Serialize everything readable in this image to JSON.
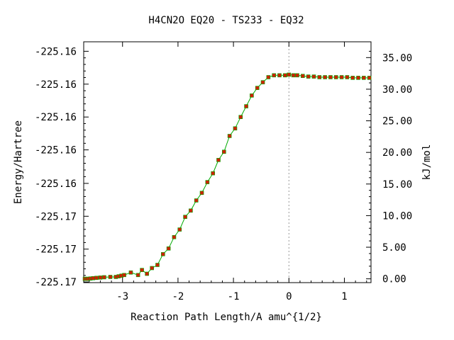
{
  "chart_data": {
    "type": "line",
    "title": "H4CN2O    EQ20 - TS233 - EQ32",
    "xlabel": "Reaction Path Length/A amu^{1/2}",
    "ylabel": "Energy/Hartree",
    "y2label": "kJ/mol",
    "xlim": [
      -3.7,
      1.48
    ],
    "y2lim": [
      -0.6,
      37.5
    ],
    "x_ticks": [
      "-3",
      "-2",
      "-1",
      "0",
      "1"
    ],
    "x_tick_values": [
      -3,
      -2,
      -1,
      0,
      1
    ],
    "y_left_ticks": [
      "-225.16",
      "-225.16",
      "-225.16",
      "-225.16",
      "-225.16",
      "-225.17",
      "-225.17",
      "-225.17"
    ],
    "y_left_tick_values_kjmol": [
      36.0,
      30.8,
      25.6,
      20.4,
      15.1,
      9.9,
      4.7,
      -0.5
    ],
    "y_right_ticks": [
      "35.00",
      "30.00",
      "25.00",
      "20.00",
      "15.00",
      "10.00",
      "5.00",
      "0.00"
    ],
    "y_right_tick_values": [
      35,
      30,
      25,
      20,
      15,
      10,
      5,
      0
    ],
    "ts_marker_x": 0,
    "series": [
      {
        "line_color": "#00aa00",
        "marker_color": "#cc2200",
        "points": [
          [
            -3.68,
            0.0
          ],
          [
            -3.65,
            0.0
          ],
          [
            -3.62,
            0.0
          ],
          [
            -3.58,
            0.05
          ],
          [
            -3.53,
            0.1
          ],
          [
            -3.47,
            0.15
          ],
          [
            -3.4,
            0.2
          ],
          [
            -3.33,
            0.25
          ],
          [
            -3.22,
            0.3
          ],
          [
            -3.12,
            0.3
          ],
          [
            -3.07,
            0.4
          ],
          [
            -3.02,
            0.5
          ],
          [
            -2.97,
            0.6
          ],
          [
            -2.85,
            1.0
          ],
          [
            -2.72,
            0.6
          ],
          [
            -2.65,
            1.4
          ],
          [
            -2.56,
            0.8
          ],
          [
            -2.47,
            1.7
          ],
          [
            -2.37,
            2.2
          ],
          [
            -2.27,
            3.9
          ],
          [
            -2.17,
            4.8
          ],
          [
            -2.07,
            6.6
          ],
          [
            -1.97,
            7.8
          ],
          [
            -1.87,
            9.8
          ],
          [
            -1.77,
            10.8
          ],
          [
            -1.67,
            12.4
          ],
          [
            -1.57,
            13.6
          ],
          [
            -1.47,
            15.3
          ],
          [
            -1.37,
            16.7
          ],
          [
            -1.27,
            18.8
          ],
          [
            -1.17,
            20.1
          ],
          [
            -1.07,
            22.6
          ],
          [
            -0.97,
            23.8
          ],
          [
            -0.87,
            25.6
          ],
          [
            -0.77,
            27.3
          ],
          [
            -0.67,
            29.0
          ],
          [
            -0.57,
            30.2
          ],
          [
            -0.47,
            31.1
          ],
          [
            -0.37,
            31.9
          ],
          [
            -0.27,
            32.2
          ],
          [
            -0.17,
            32.2
          ],
          [
            -0.07,
            32.2
          ],
          [
            0.0,
            32.3
          ],
          [
            0.08,
            32.2
          ],
          [
            0.15,
            32.2
          ],
          [
            0.25,
            32.1
          ],
          [
            0.35,
            32.0
          ],
          [
            0.45,
            32.0
          ],
          [
            0.55,
            31.9
          ],
          [
            0.65,
            31.9
          ],
          [
            0.75,
            31.9
          ],
          [
            0.85,
            31.9
          ],
          [
            0.95,
            31.9
          ],
          [
            1.05,
            31.9
          ],
          [
            1.15,
            31.8
          ],
          [
            1.25,
            31.8
          ],
          [
            1.35,
            31.8
          ],
          [
            1.45,
            31.8
          ]
        ]
      }
    ]
  }
}
